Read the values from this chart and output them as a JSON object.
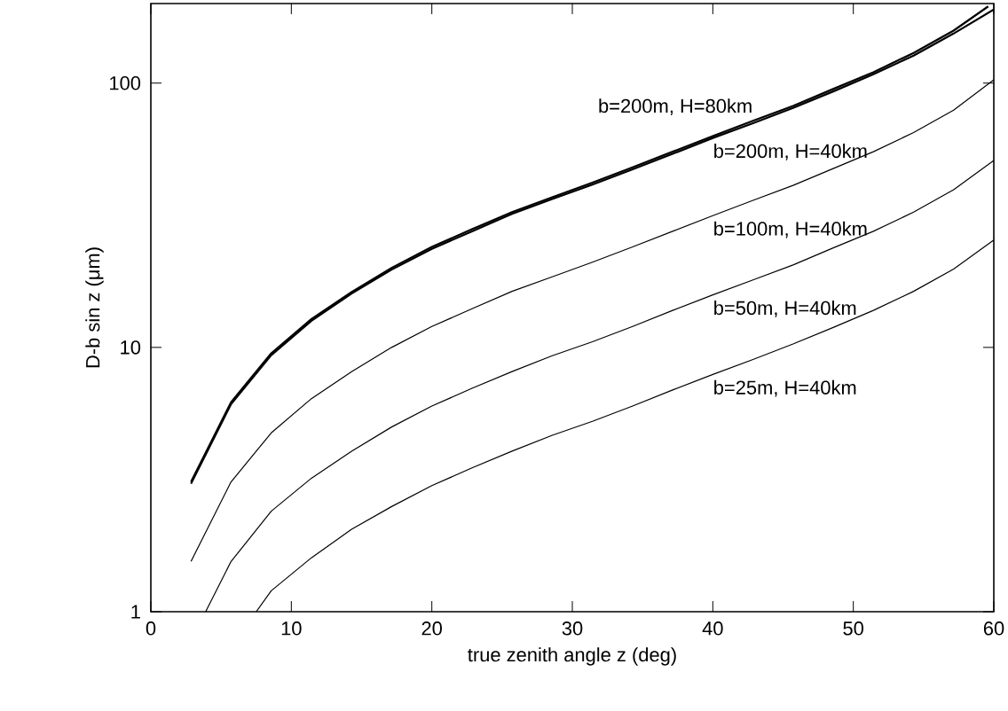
{
  "chart_data": {
    "type": "line",
    "xlabel": "true zenith angle z (deg)",
    "ylabel": "D-b sin z (μm)",
    "log": "y",
    "xlim": [
      0,
      60
    ],
    "ylim": [
      1,
      200
    ],
    "xticks": [
      0,
      10,
      20,
      30,
      40,
      50,
      60
    ],
    "yticks": [
      1,
      10,
      100
    ],
    "series": [
      {
        "name": "b=200m, H=80km",
        "color": "#000000",
        "x": [
          2.86,
          5.71,
          8.57,
          11.43,
          14.29,
          17.14,
          20,
          22.86,
          25.71,
          28.57,
          31.43,
          34.29,
          37.14,
          40,
          42.86,
          45.71,
          48.57,
          51.43,
          54.29,
          57.14,
          59.6
        ],
        "values": [
          3.1,
          6.2,
          9.5,
          12.8,
          16.2,
          20,
          24,
          28,
          32.5,
          37,
          42,
          48,
          55,
          63,
          72,
          82,
          95,
          110,
          130,
          158,
          195
        ]
      },
      {
        "name": "b=200m, H=40km",
        "color": "#000000",
        "x": [
          2.86,
          5.71,
          8.57,
          11.43,
          14.29,
          17.14,
          20,
          22.86,
          25.71,
          28.57,
          31.43,
          34.29,
          37.14,
          40,
          42.86,
          45.71,
          48.57,
          51.43,
          54.29,
          57.14,
          60
        ],
        "values": [
          3.05,
          6.1,
          9.35,
          12.6,
          16,
          19.7,
          23.6,
          27.5,
          32,
          36.4,
          41.3,
          47.2,
          54,
          62,
          70.5,
          80.5,
          93,
          108,
          127,
          154,
          190
        ]
      },
      {
        "name": "b=100m, H=40km",
        "color": "#000000",
        "x": [
          2.86,
          5.71,
          8.57,
          11.43,
          14.29,
          17.14,
          20,
          22.86,
          25.71,
          28.57,
          31.43,
          34.29,
          37.14,
          40,
          42.86,
          45.71,
          48.57,
          51.43,
          54.29,
          57.14,
          60
        ],
        "values": [
          1.55,
          3.1,
          4.75,
          6.4,
          8.1,
          10,
          12,
          14,
          16.3,
          18.5,
          21,
          24,
          27.5,
          31.5,
          36,
          41,
          47.5,
          55,
          65,
          79,
          103
        ]
      },
      {
        "name": "b=50m, H=40km",
        "color": "#000000",
        "x": [
          3.9,
          5.71,
          8.57,
          11.43,
          14.29,
          17.14,
          20,
          22.86,
          25.71,
          28.57,
          31.43,
          34.29,
          37.14,
          40,
          42.86,
          45.71,
          48.57,
          51.43,
          54.29,
          57.14,
          60
        ],
        "values": [
          1,
          1.55,
          2.4,
          3.2,
          4.05,
          5,
          6,
          7,
          8.1,
          9.3,
          10.5,
          12,
          13.8,
          15.8,
          18,
          20.5,
          23.8,
          27.5,
          32.5,
          39.5,
          51
        ]
      },
      {
        "name": "b=25m, H=40km",
        "color": "#000000",
        "x": [
          7.5,
          8.57,
          11.43,
          14.29,
          17.14,
          20,
          22.86,
          25.71,
          28.57,
          31.43,
          34.29,
          37.14,
          40,
          42.86,
          45.71,
          48.57,
          51.43,
          54.29,
          57.14,
          60
        ],
        "values": [
          1,
          1.2,
          1.6,
          2.05,
          2.5,
          3,
          3.5,
          4.05,
          4.65,
          5.25,
          6,
          6.9,
          7.9,
          9,
          10.3,
          11.9,
          13.8,
          16.3,
          19.8,
          25.5
        ]
      }
    ]
  }
}
